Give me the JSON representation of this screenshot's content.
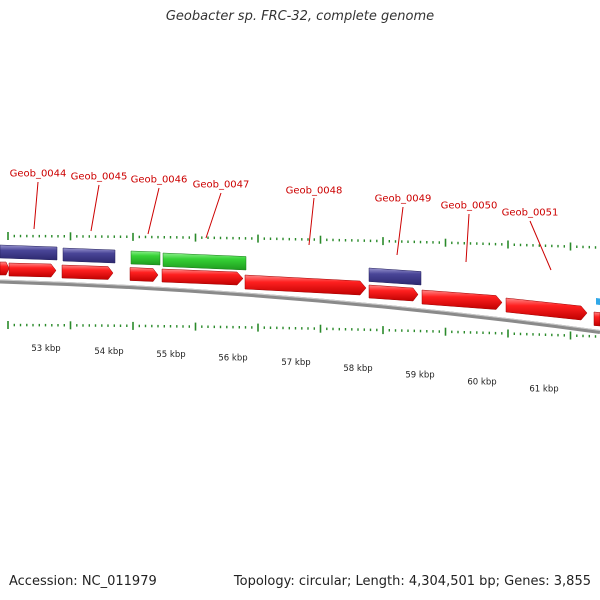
{
  "title": "Geobacter sp. FRC-32, complete genome",
  "footer": {
    "accession": "Accession: NC_011979",
    "summary": "Topology: circular; Length: 4,304,501 bp; Genes: 3,855"
  },
  "colors": {
    "cds_red": "#ff2020",
    "gene_purple": "#3e3a8a",
    "gene_green": "#30cc30",
    "tick_green": "#2a8a2a",
    "backbone_gray": "#8a8a8a",
    "label_red": "#cc0000",
    "edge_blue": "#30a8e8"
  },
  "gene_labels": [
    {
      "name": "Geob_0044"
    },
    {
      "name": "Geob_0045"
    },
    {
      "name": "Geob_0046"
    },
    {
      "name": "Geob_0047"
    },
    {
      "name": "Geob_0048"
    },
    {
      "name": "Geob_0049"
    },
    {
      "name": "Geob_0050"
    },
    {
      "name": "Geob_0051"
    }
  ],
  "scale_labels": [
    "53 kbp",
    "54 kbp",
    "55 kbp",
    "56 kbp",
    "57 kbp",
    "58 kbp",
    "59 kbp",
    "60 kbp",
    "61 kbp"
  ]
}
